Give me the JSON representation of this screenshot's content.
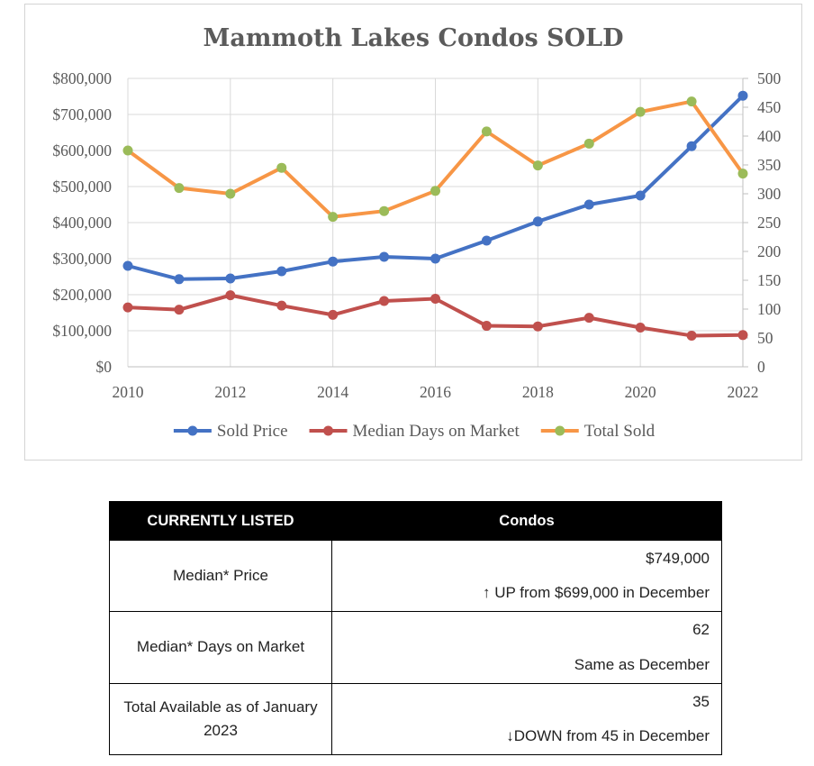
{
  "chart_data": {
    "type": "line",
    "title": "Mammoth Lakes Condos SOLD",
    "x": [
      2010,
      2011,
      2012,
      2013,
      2014,
      2015,
      2016,
      2017,
      2018,
      2019,
      2020,
      2021,
      2022
    ],
    "x_ticks": [
      "2010",
      "2012",
      "2014",
      "2016",
      "2018",
      "2020",
      "2022"
    ],
    "xlim": [
      2010,
      2022
    ],
    "y_left": {
      "range": [
        0,
        800000
      ],
      "ticks": [
        "$0",
        "$100,000",
        "$200,000",
        "$300,000",
        "$400,000",
        "$500,000",
        "$600,000",
        "$700,000",
        "$800,000"
      ]
    },
    "y_right": {
      "range": [
        0,
        500
      ],
      "ticks": [
        "0",
        "50",
        "100",
        "150",
        "200",
        "250",
        "300",
        "350",
        "400",
        "450",
        "500"
      ]
    },
    "grid": true,
    "legend_position": "bottom",
    "series": [
      {
        "name": "Sold Price",
        "axis": "left",
        "color": "#4472c4",
        "marker_color": "#4472c4",
        "values": [
          280000,
          243000,
          245000,
          265000,
          292000,
          305000,
          300000,
          350000,
          403000,
          450000,
          475000,
          612000,
          752000
        ]
      },
      {
        "name": "Median Days on Market",
        "axis": "right",
        "color": "#c0504d",
        "marker_color": "#c0504d",
        "values": [
          103,
          99,
          124,
          106,
          90,
          114,
          118,
          71,
          70,
          85,
          68,
          54,
          55
        ]
      },
      {
        "name": "Total Sold",
        "axis": "right",
        "color": "#f79646",
        "marker_color": "#9bbb59",
        "values": [
          375,
          310,
          300,
          345,
          260,
          270,
          305,
          408,
          349,
          387,
          442,
          460,
          335
        ]
      }
    ]
  },
  "table": {
    "header": [
      "CURRENTLY LISTED",
      "Condos"
    ],
    "rows": [
      {
        "label": "Median* Price",
        "value": "$749,000",
        "change": "↑ UP from $699,000 in December"
      },
      {
        "label": "Median* Days on Market",
        "value": "62",
        "change": "Same as December"
      },
      {
        "label": "Total Available as of January 2023",
        "value": "35",
        "change": "↓DOWN from 45 in December"
      }
    ]
  }
}
